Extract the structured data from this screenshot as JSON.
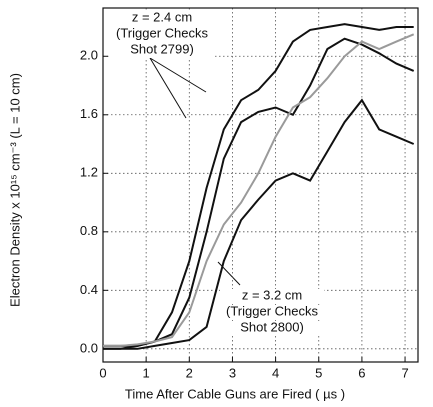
{
  "chart_data": {
    "type": "line",
    "xlabel": "Time After Cable Guns are Fired ( µs )",
    "ylabel": "Electron Density x 10¹⁵ cm⁻³  (L = 10 cm)",
    "x": [
      0,
      0.4,
      0.8,
      1.2,
      1.6,
      2.0,
      2.4,
      2.8,
      3.2,
      3.6,
      4.0,
      4.4,
      4.8,
      5.2,
      5.6,
      6.0,
      6.4,
      6.8,
      7.2
    ],
    "series": [
      {
        "color": "#111111",
        "values": [
          0.02,
          0.02,
          0.02,
          0.05,
          0.25,
          0.6,
          1.1,
          1.5,
          1.7,
          1.77,
          1.9,
          2.1,
          2.18,
          2.2,
          2.22,
          2.2,
          2.18,
          2.2,
          2.2
        ]
      },
      {
        "color": "#111111",
        "values": [
          0,
          0,
          0.02,
          0.05,
          0.1,
          0.35,
          0.8,
          1.3,
          1.55,
          1.62,
          1.65,
          1.6,
          1.8,
          2.05,
          2.12,
          2.08,
          2.02,
          1.95,
          1.9
        ]
      },
      {
        "color": "#111111",
        "values": [
          0,
          0,
          0,
          0.02,
          0.04,
          0.06,
          0.15,
          0.6,
          0.88,
          1.02,
          1.15,
          1.2,
          1.15,
          1.35,
          1.55,
          1.7,
          1.5,
          1.45,
          1.4
        ]
      },
      {
        "color": "#9a9a9a",
        "values": [
          0.02,
          0.02,
          0.03,
          0.05,
          0.08,
          0.25,
          0.6,
          0.85,
          1.0,
          1.2,
          1.45,
          1.65,
          1.72,
          1.85,
          2.0,
          2.1,
          2.05,
          2.1,
          2.15
        ]
      }
    ],
    "xlim": [
      0,
      7.3
    ],
    "ylim": [
      -0.09,
      2.33
    ],
    "xticks": [
      0,
      1,
      2,
      3,
      4,
      5,
      6,
      7
    ],
    "yticks": [
      {
        "value": 0,
        "label": "0.0"
      },
      0.4,
      {
        "value": 0.8,
        "label": "0.8"
      },
      {
        "value": 1.2,
        "label": "1.2"
      },
      {
        "value": 1.6,
        "label": "1.6"
      },
      {
        "value": 2.0,
        "label": "2.0"
      }
    ],
    "grid": true,
    "annotations": [
      {
        "lines": [
          "z = 2.4  cm",
          "(Trigger Checks",
          "Shot 2799)"
        ]
      },
      {
        "lines": [
          "z = 3.2  cm",
          "(Trigger Checks",
          "Shot 2800)"
        ]
      }
    ]
  }
}
